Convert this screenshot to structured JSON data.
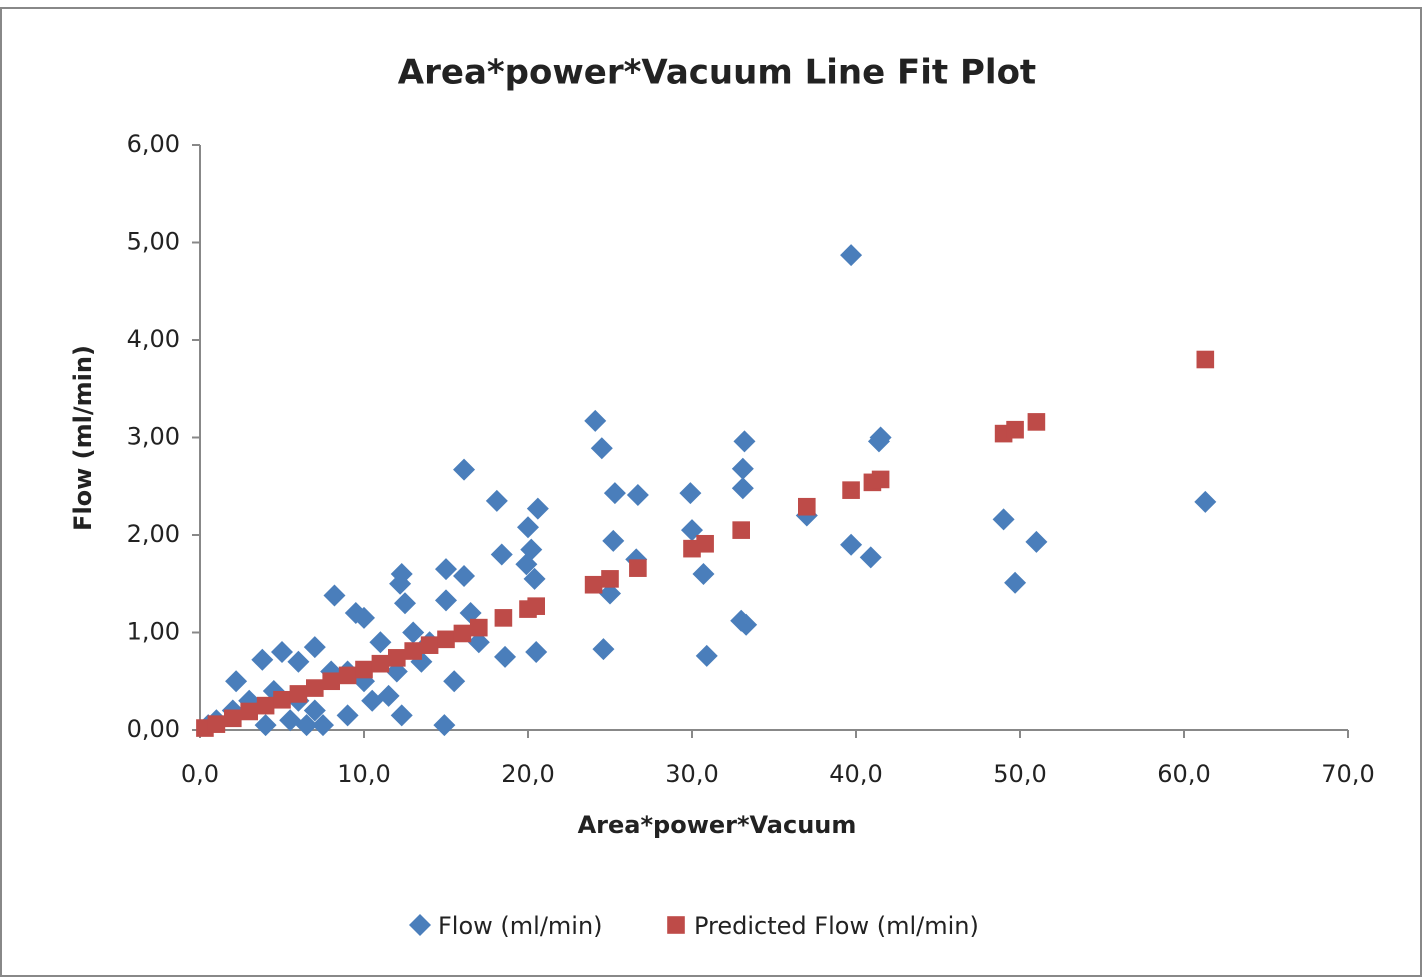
{
  "chart_data": {
    "type": "scatter",
    "title": "Area*power*Vacuum Line Fit  Plot",
    "x_label": "Area*power*Vacuum",
    "y_label": "Flow (ml/min)",
    "xlim": [
      0,
      70
    ],
    "ylim": [
      0,
      6
    ],
    "xticks": [
      {
        "value": 0,
        "label": "0,0"
      },
      {
        "value": 10,
        "label": "10,0"
      },
      {
        "value": 20,
        "label": "20,0"
      },
      {
        "value": 30,
        "label": "30,0"
      },
      {
        "value": 40,
        "label": "40,0"
      },
      {
        "value": 50,
        "label": "50,0"
      },
      {
        "value": 60,
        "label": "60,0"
      },
      {
        "value": 70,
        "label": "70,0"
      }
    ],
    "yticks": [
      {
        "value": 0,
        "label": "0,00"
      },
      {
        "value": 1,
        "label": "1,00"
      },
      {
        "value": 2,
        "label": "2,00"
      },
      {
        "value": 3,
        "label": "3,00"
      },
      {
        "value": 4,
        "label": "4,00"
      },
      {
        "value": 5,
        "label": "5,00"
      },
      {
        "value": 6,
        "label": "6,00"
      }
    ],
    "legend": "bottom",
    "series": [
      {
        "name": "Flow (ml/min)",
        "color": "#4a7ebb",
        "marker": "diamond",
        "x": [
          39.7,
          61.3,
          49.7,
          51.0,
          49.0,
          41.5,
          41.4,
          39.7,
          40.9,
          37.0,
          33.2,
          33.1,
          33.1,
          33.0,
          33.3,
          30.7,
          30.9,
          29.9,
          30.0,
          26.7,
          25.3,
          25.2,
          24.1,
          24.5,
          24.6,
          25.0,
          26.6,
          20.6,
          20.0,
          20.2,
          19.9,
          20.4,
          18.4,
          18.1,
          18.6,
          20.5,
          16.1,
          16.1,
          15.0,
          15.0,
          15.5,
          14.9,
          16.5,
          12.3,
          12.2,
          12.5,
          12.3,
          8.2,
          9.5,
          10.0,
          9.0,
          10.5,
          11.5,
          7.0,
          6.0,
          5.0,
          3.8,
          2.2,
          6.5,
          7.5,
          5.5,
          4.0,
          3.0,
          2.0,
          1.0,
          0.5,
          8.0,
          11.0,
          13.0,
          14.0,
          10.0,
          9.0,
          4.5,
          6.0,
          7.0,
          13.5,
          17.0,
          12.0
        ],
        "values": [
          4.87,
          2.34,
          1.51,
          1.93,
          2.16,
          3.0,
          2.96,
          1.9,
          1.77,
          2.2,
          2.96,
          2.68,
          2.48,
          1.12,
          1.08,
          1.6,
          0.76,
          2.43,
          2.05,
          2.41,
          2.43,
          1.94,
          3.17,
          2.89,
          0.83,
          1.4,
          1.75,
          2.27,
          2.08,
          1.85,
          1.7,
          1.55,
          1.8,
          2.35,
          0.75,
          0.8,
          2.67,
          1.58,
          1.65,
          1.33,
          0.5,
          0.05,
          1.2,
          1.6,
          1.5,
          1.3,
          0.15,
          1.38,
          1.2,
          1.15,
          0.15,
          0.3,
          0.35,
          0.85,
          0.7,
          0.8,
          0.72,
          0.5,
          0.05,
          0.05,
          0.1,
          0.05,
          0.3,
          0.2,
          0.1,
          0.05,
          0.6,
          0.9,
          1.0,
          0.9,
          0.5,
          0.6,
          0.4,
          0.3,
          0.2,
          0.7,
          0.9,
          0.6
        ]
      },
      {
        "name": "Predicted Flow (ml/min)",
        "color": "#be4b48",
        "marker": "square",
        "x": [
          0.3,
          1,
          2,
          3,
          4,
          5,
          6,
          7,
          8,
          9,
          10,
          11,
          12,
          13,
          14,
          15,
          16,
          17,
          18.5,
          20,
          20.5,
          24,
          25,
          26.7,
          30,
          30.8,
          33,
          37,
          39.7,
          41,
          41.5,
          49,
          49.7,
          51,
          61.3
        ],
        "values": [
          0.02,
          0.06,
          0.12,
          0.19,
          0.25,
          0.31,
          0.37,
          0.43,
          0.5,
          0.56,
          0.62,
          0.68,
          0.74,
          0.81,
          0.87,
          0.93,
          0.99,
          1.05,
          1.15,
          1.24,
          1.27,
          1.49,
          1.55,
          1.66,
          1.86,
          1.91,
          2.05,
          2.29,
          2.46,
          2.54,
          2.57,
          3.04,
          3.08,
          3.16,
          3.8
        ]
      }
    ]
  }
}
